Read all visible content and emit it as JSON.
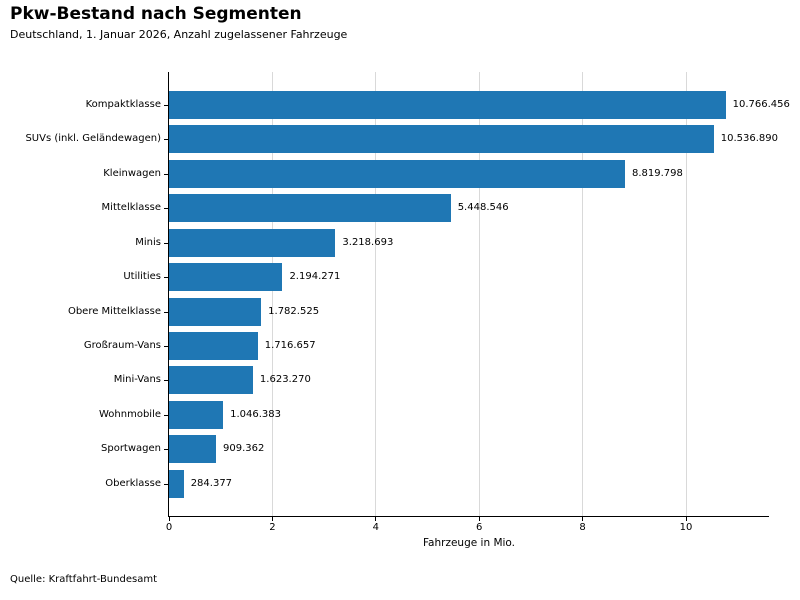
{
  "header": {
    "title": "Pkw-Bestand nach Segmenten",
    "subtitle": "Deutschland, 1. Januar 2026, Anzahl zugelassener Fahrzeuge"
  },
  "footer": {
    "source": "Quelle: Kraftfahrt-Bundesamt"
  },
  "chart_data": {
    "type": "bar",
    "orientation": "horizontal",
    "title": "Pkw-Bestand nach Segmenten",
    "subtitle": "Deutschland, 1. Januar 2026, Anzahl zugelassener Fahrzeuge",
    "categories": [
      "Kompaktklasse",
      "SUVs (inkl. Geländewagen)",
      "Kleinwagen",
      "Mittelklasse",
      "Minis",
      "Utilities",
      "Obere Mittelklasse",
      "Großraum-Vans",
      "Mini-Vans",
      "Wohnmobile",
      "Sportwagen",
      "Oberklasse"
    ],
    "values": [
      10766456,
      10536890,
      8819798,
      5448546,
      3218693,
      2194271,
      1782525,
      1716657,
      1623270,
      1046383,
      909362,
      284377
    ],
    "value_labels": [
      "10.766.456",
      "10.536.890",
      "8.819.798",
      "5.448.546",
      "3.218.693",
      "2.194.271",
      "1.782.525",
      "1.716.657",
      "1.623.270",
      "1.046.383",
      "909.362",
      "284.377"
    ],
    "xlabel": "Fahrzeuge in Mio.",
    "x_ticks": [
      0,
      2,
      4,
      6,
      8,
      10
    ],
    "x_tick_labels": [
      "0",
      "2",
      "4",
      "6",
      "8",
      "10"
    ],
    "xlim": [
      0,
      11.6
    ],
    "grid": true,
    "legend_position": "none",
    "bar_color": "#1f77b4",
    "gridline_color": "#d9d9d9",
    "axis_color": "#000000"
  }
}
